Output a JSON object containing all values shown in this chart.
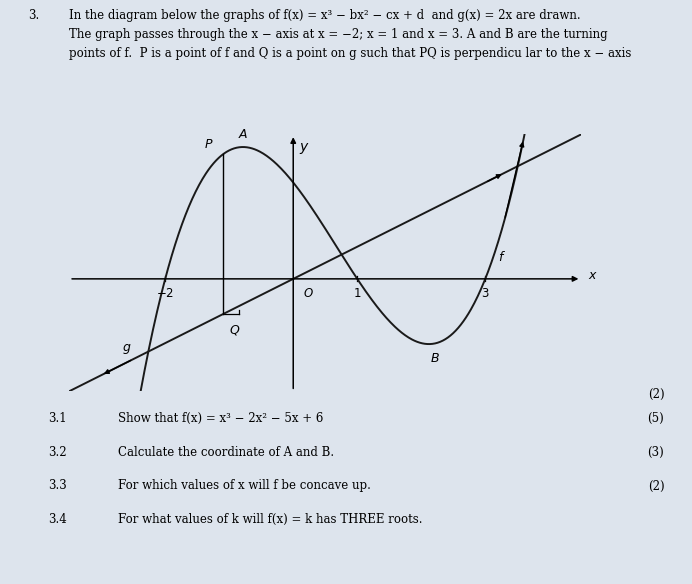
{
  "bg_color": "#dde4ed",
  "curve_color": "#1a1a1a",
  "title_num": "3.",
  "title_line1": "In the diagram below the graphs of f(x) = x³ − bx² − cx + d  and g(x) = 2x are drawn.",
  "title_line2": "The graph passes through the x − axis at x = −2; x = 1 and x = 3. A and B are the turning",
  "title_line3": "points of f.  P is a point of f and Q is a point on g such that PQ is perpendicu lar to the x − axis",
  "sq_items": [
    {
      "num": "3.1",
      "text": "Show that f(x) = x³ − 2x² − 5x + 6"
    },
    {
      "num": "3.2",
      "text": "Calculate the coordinate of A and B."
    },
    {
      "num": "3.3",
      "text": "For which values of x will f be concave up."
    },
    {
      "num": "3.4",
      "text": "For what values of k will f(x) = k has THREE roots."
    }
  ],
  "marks_above": "(2)",
  "marks_list": [
    "(5)",
    "(3)",
    "(2)",
    ""
  ],
  "x_range": [
    -3.5,
    4.5
  ],
  "y_range": [
    -7,
    9
  ],
  "xP": -1.1
}
